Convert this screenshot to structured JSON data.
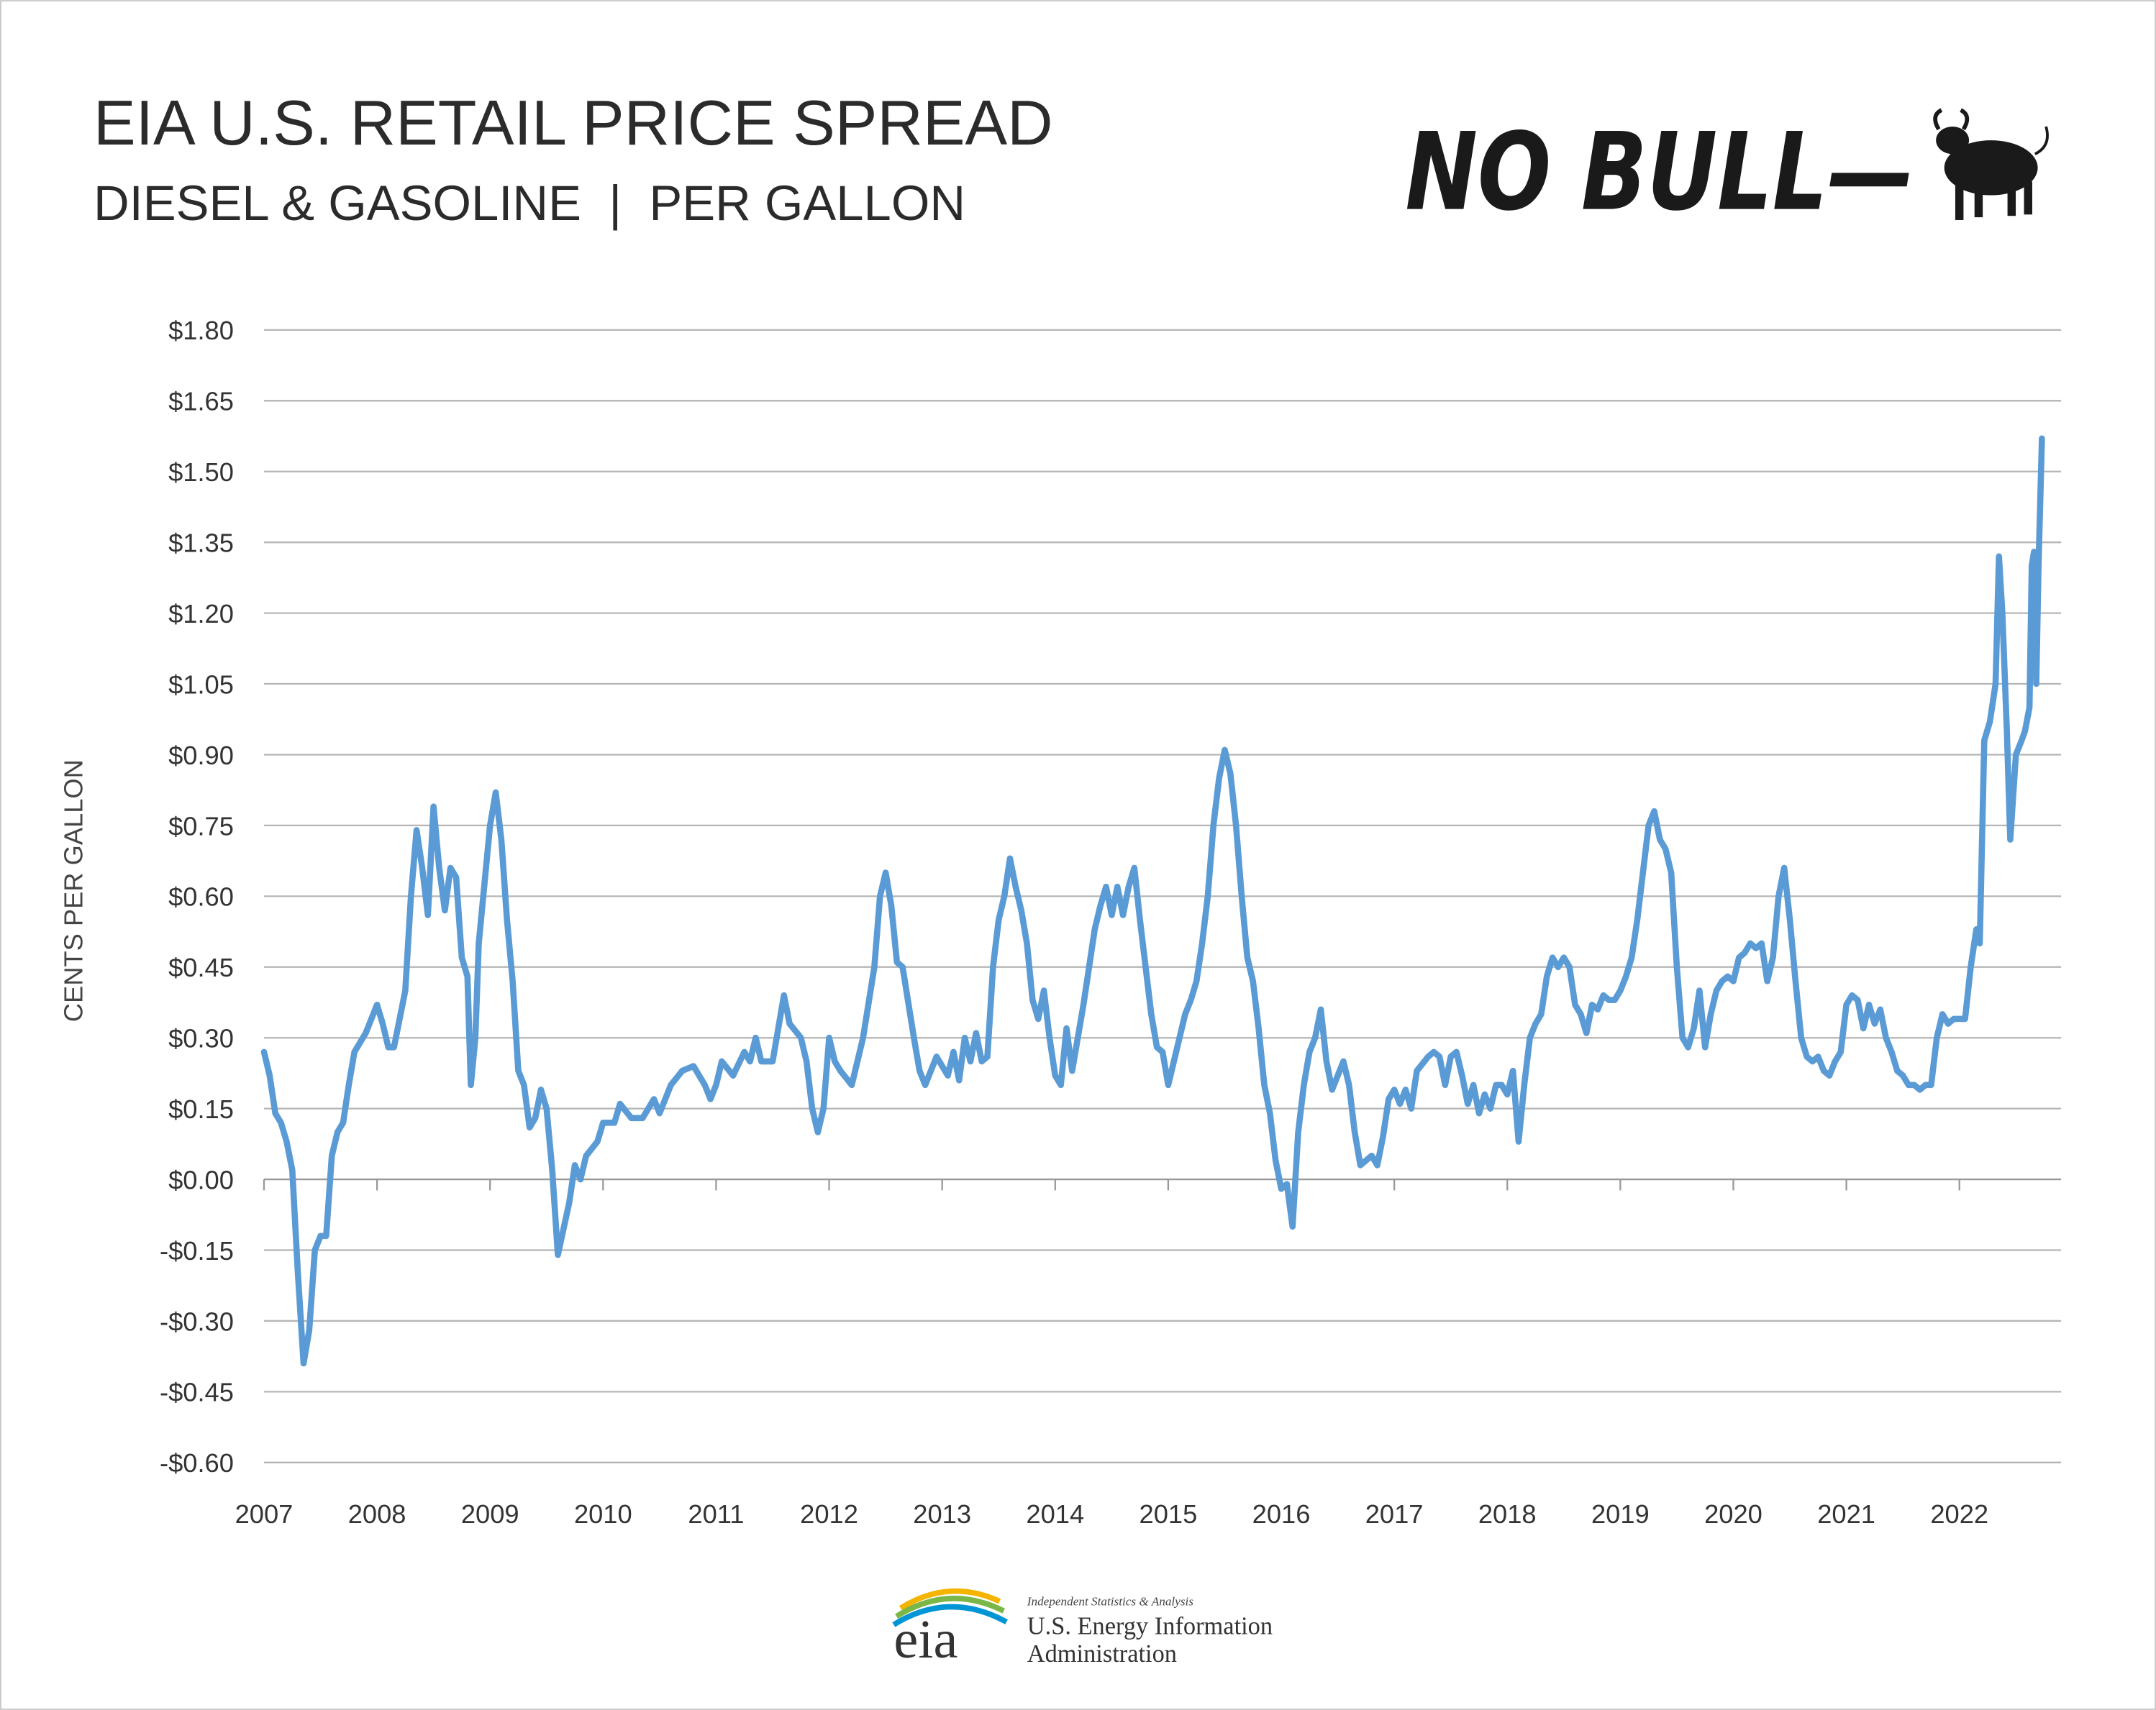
{
  "chart_data": {
    "type": "line",
    "title": "EIA U.S. RETAIL PRICE SPREAD",
    "subtitle": "DIESEL & GASOLINE  |  PER GALLON",
    "y_label": "CENTS PER GALLON",
    "color": "#5b9bd5",
    "grid": true,
    "xlim": [
      2007,
      2022.9
    ],
    "xticks": [
      2007,
      2008,
      2009,
      2010,
      2011,
      2012,
      2013,
      2014,
      2015,
      2016,
      2017,
      2018,
      2019,
      2020,
      2021,
      2022
    ],
    "ylim": [
      -0.6,
      1.8
    ],
    "yticks": [
      {
        "value": 1.8,
        "label": "$1.80"
      },
      {
        "value": 1.65,
        "label": "$1.65"
      },
      {
        "value": 1.5,
        "label": "$1.50"
      },
      {
        "value": 1.35,
        "label": "$1.35"
      },
      {
        "value": 1.2,
        "label": "$1.20"
      },
      {
        "value": 1.05,
        "label": "$1.05"
      },
      {
        "value": 0.9,
        "label": "$0.90"
      },
      {
        "value": 0.75,
        "label": "$0.75"
      },
      {
        "value": 0.6,
        "label": "$0.60"
      },
      {
        "value": 0.45,
        "label": "$0.45"
      },
      {
        "value": 0.3,
        "label": "$0.30"
      },
      {
        "value": 0.15,
        "label": "$0.15"
      },
      {
        "value": 0,
        "label": "$0.00"
      },
      {
        "value": -0.15,
        "label": "-$0.15"
      },
      {
        "value": -0.3,
        "label": "-$0.30"
      },
      {
        "value": -0.45,
        "label": "-$0.45"
      },
      {
        "value": -0.6,
        "label": "-$0.60"
      }
    ],
    "x": [
      2007.0,
      2007.05,
      2007.1,
      2007.15,
      2007.2,
      2007.25,
      2007.3,
      2007.35,
      2007.4,
      2007.45,
      2007.5,
      2007.55,
      2007.6,
      2007.65,
      2007.7,
      2007.75,
      2007.8,
      2007.9,
      2008.0,
      2008.05,
      2008.1,
      2008.15,
      2008.25,
      2008.3,
      2008.35,
      2008.4,
      2008.45,
      2008.5,
      2008.55,
      2008.6,
      2008.65,
      2008.7,
      2008.75,
      2008.8,
      2008.83,
      2008.87,
      2008.9,
      2009.0,
      2009.05,
      2009.1,
      2009.15,
      2009.2,
      2009.25,
      2009.3,
      2009.35,
      2009.4,
      2009.45,
      2009.5,
      2009.55,
      2009.6,
      2009.7,
      2009.75,
      2009.8,
      2009.85,
      2009.95,
      2010.0,
      2010.1,
      2010.15,
      2010.25,
      2010.35,
      2010.45,
      2010.5,
      2010.6,
      2010.7,
      2010.8,
      2010.9,
      2010.95,
      2011.0,
      2011.05,
      2011.15,
      2011.25,
      2011.3,
      2011.35,
      2011.4,
      2011.5,
      2011.55,
      2011.6,
      2011.65,
      2011.75,
      2011.8,
      2011.85,
      2011.9,
      2011.95,
      2012.0,
      2012.05,
      2012.1,
      2012.2,
      2012.3,
      2012.4,
      2012.45,
      2012.5,
      2012.55,
      2012.6,
      2012.65,
      2012.75,
      2012.8,
      2012.85,
      2012.95,
      2013.05,
      2013.1,
      2013.15,
      2013.2,
      2013.25,
      2013.3,
      2013.35,
      2013.4,
      2013.45,
      2013.5,
      2013.55,
      2013.6,
      2013.65,
      2013.7,
      2013.75,
      2013.8,
      2013.85,
      2013.9,
      2013.95,
      2014.0,
      2014.05,
      2014.1,
      2014.15,
      2014.2,
      2014.25,
      2014.3,
      2014.35,
      2014.4,
      2014.45,
      2014.5,
      2014.55,
      2014.6,
      2014.65,
      2014.7,
      2014.75,
      2014.8,
      2014.85,
      2014.9,
      2014.95,
      2015.0,
      2015.05,
      2015.1,
      2015.15,
      2015.2,
      2015.25,
      2015.3,
      2015.35,
      2015.4,
      2015.45,
      2015.5,
      2015.55,
      2015.6,
      2015.65,
      2015.7,
      2015.75,
      2015.8,
      2015.85,
      2015.9,
      2015.95,
      2016.0,
      2016.05,
      2016.1,
      2016.15,
      2016.2,
      2016.25,
      2016.3,
      2016.35,
      2016.4,
      2016.45,
      2016.5,
      2016.55,
      2016.6,
      2016.65,
      2016.7,
      2016.75,
      2016.8,
      2016.85,
      2016.9,
      2016.95,
      2017.0,
      2017.05,
      2017.1,
      2017.15,
      2017.2,
      2017.3,
      2017.35,
      2017.4,
      2017.45,
      2017.5,
      2017.55,
      2017.6,
      2017.65,
      2017.7,
      2017.75,
      2017.8,
      2017.85,
      2017.9,
      2017.95,
      2018.0,
      2018.05,
      2018.1,
      2018.15,
      2018.2,
      2018.25,
      2018.3,
      2018.35,
      2018.4,
      2018.45,
      2018.5,
      2018.55,
      2018.6,
      2018.65,
      2018.7,
      2018.75,
      2018.8,
      2018.85,
      2018.9,
      2018.95,
      2019.0,
      2019.05,
      2019.1,
      2019.15,
      2019.2,
      2019.25,
      2019.3,
      2019.35,
      2019.4,
      2019.45,
      2019.5,
      2019.55,
      2019.6,
      2019.65,
      2019.7,
      2019.75,
      2019.8,
      2019.85,
      2019.9,
      2019.95,
      2020.0,
      2020.05,
      2020.1,
      2020.15,
      2020.2,
      2020.25,
      2020.3,
      2020.35,
      2020.4,
      2020.45,
      2020.5,
      2020.55,
      2020.6,
      2020.65,
      2020.7,
      2020.75,
      2020.8,
      2020.85,
      2020.9,
      2020.95,
      2021.0,
      2021.05,
      2021.1,
      2021.15,
      2021.2,
      2021.25,
      2021.3,
      2021.35,
      2021.4,
      2021.45,
      2021.5,
      2021.55,
      2021.6,
      2021.65,
      2021.7,
      2021.75,
      2021.8,
      2021.85,
      2021.9,
      2021.95,
      2022.0,
      2022.05,
      2022.1,
      2022.15,
      2022.18,
      2022.22,
      2022.27,
      2022.32,
      2022.35,
      2022.38,
      2022.42,
      2022.45,
      2022.5,
      2022.55,
      2022.58,
      2022.62,
      2022.64,
      2022.66,
      2022.68,
      2022.7,
      2022.73
    ],
    "values": [
      0.27,
      0.22,
      0.14,
      0.12,
      0.08,
      0.02,
      -0.2,
      -0.39,
      -0.32,
      -0.15,
      -0.12,
      -0.12,
      0.05,
      0.1,
      0.12,
      0.2,
      0.27,
      0.31,
      0.37,
      0.33,
      0.28,
      0.28,
      0.4,
      0.6,
      0.74,
      0.66,
      0.56,
      0.79,
      0.66,
      0.57,
      0.66,
      0.64,
      0.47,
      0.43,
      0.2,
      0.3,
      0.5,
      0.75,
      0.82,
      0.72,
      0.55,
      0.42,
      0.23,
      0.2,
      0.11,
      0.13,
      0.19,
      0.15,
      0.02,
      -0.16,
      -0.05,
      0.03,
      0.0,
      0.05,
      0.08,
      0.12,
      0.12,
      0.16,
      0.13,
      0.13,
      0.17,
      0.14,
      0.2,
      0.23,
      0.24,
      0.2,
      0.17,
      0.2,
      0.25,
      0.22,
      0.27,
      0.25,
      0.3,
      0.25,
      0.25,
      0.32,
      0.39,
      0.33,
      0.3,
      0.25,
      0.15,
      0.1,
      0.15,
      0.3,
      0.25,
      0.23,
      0.2,
      0.3,
      0.45,
      0.6,
      0.65,
      0.58,
      0.46,
      0.45,
      0.3,
      0.23,
      0.2,
      0.26,
      0.22,
      0.27,
      0.21,
      0.3,
      0.25,
      0.31,
      0.25,
      0.26,
      0.45,
      0.55,
      0.6,
      0.68,
      0.62,
      0.57,
      0.5,
      0.38,
      0.34,
      0.4,
      0.3,
      0.22,
      0.2,
      0.32,
      0.23,
      0.3,
      0.37,
      0.45,
      0.53,
      0.58,
      0.62,
      0.56,
      0.62,
      0.56,
      0.62,
      0.66,
      0.55,
      0.45,
      0.35,
      0.28,
      0.27,
      0.2,
      0.25,
      0.3,
      0.35,
      0.38,
      0.42,
      0.5,
      0.6,
      0.75,
      0.85,
      0.91,
      0.86,
      0.75,
      0.6,
      0.47,
      0.42,
      0.32,
      0.2,
      0.14,
      0.04,
      -0.02,
      -0.01,
      -0.1,
      0.1,
      0.2,
      0.27,
      0.3,
      0.36,
      0.25,
      0.19,
      0.22,
      0.25,
      0.2,
      0.1,
      0.03,
      0.04,
      0.05,
      0.03,
      0.09,
      0.17,
      0.19,
      0.16,
      0.19,
      0.15,
      0.23,
      0.26,
      0.27,
      0.26,
      0.2,
      0.26,
      0.27,
      0.22,
      0.16,
      0.2,
      0.14,
      0.18,
      0.15,
      0.2,
      0.2,
      0.18,
      0.23,
      0.08,
      0.2,
      0.3,
      0.33,
      0.35,
      0.43,
      0.47,
      0.45,
      0.47,
      0.45,
      0.37,
      0.35,
      0.31,
      0.37,
      0.36,
      0.39,
      0.38,
      0.38,
      0.4,
      0.43,
      0.47,
      0.55,
      0.65,
      0.75,
      0.78,
      0.72,
      0.7,
      0.65,
      0.45,
      0.3,
      0.28,
      0.32,
      0.4,
      0.28,
      0.35,
      0.4,
      0.42,
      0.43,
      0.42,
      0.47,
      0.48,
      0.5,
      0.49,
      0.5,
      0.42,
      0.47,
      0.6,
      0.66,
      0.55,
      0.42,
      0.3,
      0.26,
      0.25,
      0.26,
      0.23,
      0.22,
      0.25,
      0.27,
      0.37,
      0.39,
      0.38,
      0.32,
      0.37,
      0.33,
      0.36,
      0.3,
      0.27,
      0.23,
      0.22,
      0.2,
      0.2,
      0.19,
      0.2,
      0.2,
      0.3,
      0.35,
      0.33,
      0.34,
      0.34,
      0.34,
      0.45,
      0.53,
      0.5,
      0.93,
      0.97,
      1.05,
      1.32,
      1.2,
      0.95,
      0.72,
      0.9,
      0.93,
      0.95,
      1.0,
      1.3,
      1.33,
      1.05,
      1.3,
      1.57
    ]
  },
  "branding": {
    "logo": "NO BULL—"
  },
  "footer": {
    "logo": "eia",
    "tagline": "Independent Statistics & Analysis",
    "name_line1": "U.S. Energy Information",
    "name_line2": "Administration"
  }
}
